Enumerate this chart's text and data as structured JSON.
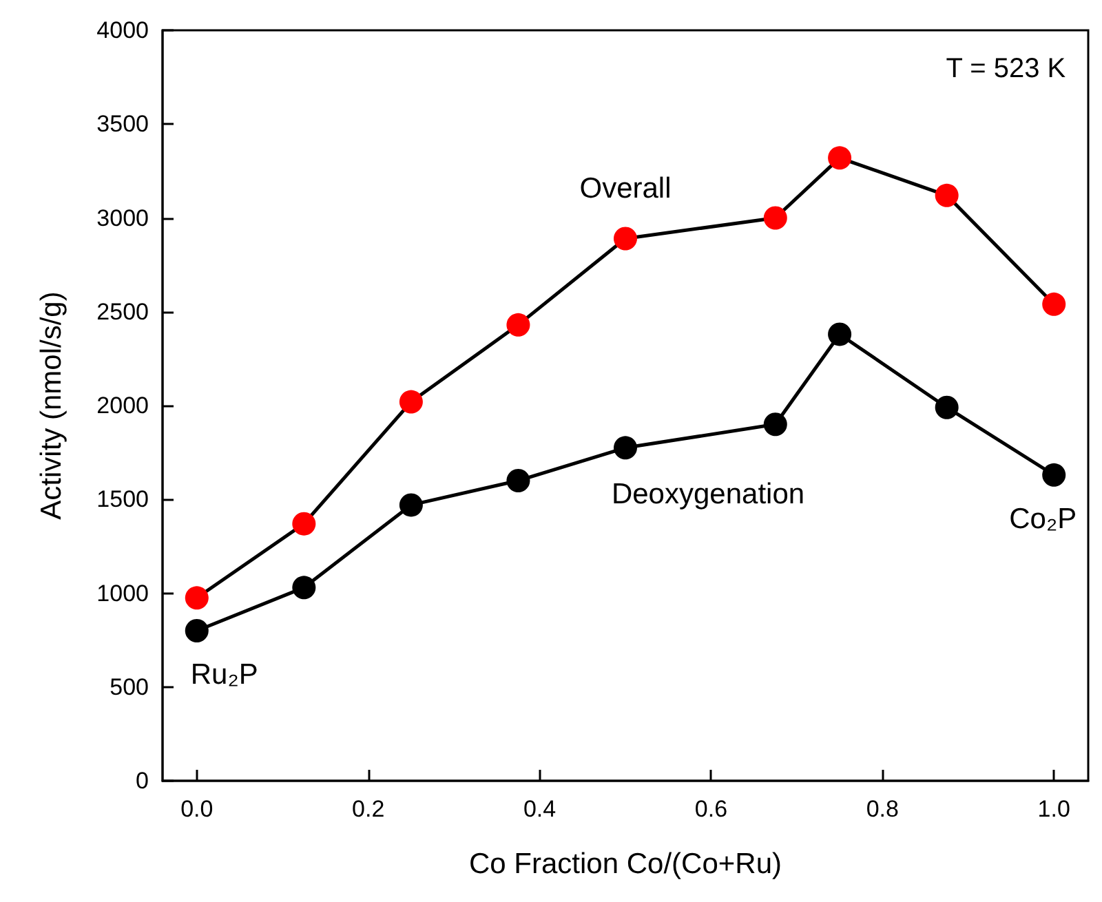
{
  "chart_data": {
    "type": "line",
    "xlabel": "Co Fraction Co/(Co+Ru)",
    "ylabel": "Activity (nmol/s/g)",
    "x": [
      0,
      0.125,
      0.25,
      0.375,
      0.5,
      0.675,
      0.75,
      0.875,
      1.0
    ],
    "series": [
      {
        "name": "Overall",
        "color": "#ff0000",
        "values": [
          975,
          1370,
          2020,
          2430,
          2890,
          3000,
          3320,
          3120,
          2540
        ]
      },
      {
        "name": "Deoxygenation",
        "color": "#000000",
        "values": [
          800,
          1030,
          1470,
          1600,
          1775,
          1900,
          2380,
          1990,
          1630
        ]
      }
    ],
    "xlim": [
      -0.04,
      1.04
    ],
    "xticks": [
      {
        "value": 0,
        "label": "0.0"
      },
      {
        "value": 0.2,
        "label": "0.2"
      },
      {
        "value": 0.4,
        "label": "0.4"
      },
      {
        "value": 0.6,
        "label": "0.6"
      },
      {
        "value": 0.8,
        "label": "0.8"
      },
      {
        "value": 1.0,
        "label": "1.0"
      }
    ],
    "ylim": [
      0,
      4000
    ],
    "yticks": [
      0,
      500,
      1000,
      1500,
      2000,
      2500,
      3000,
      3500,
      4000
    ],
    "annotations": [
      "T = 523 K",
      {
        "text": "Ru₂P",
        "x": 0,
        "y": 800
      },
      {
        "text": "Co₂P",
        "x": 1.0,
        "y": 1630
      }
    ],
    "grid": false,
    "legend": false,
    "marker": "circle",
    "line_style": "solid"
  }
}
